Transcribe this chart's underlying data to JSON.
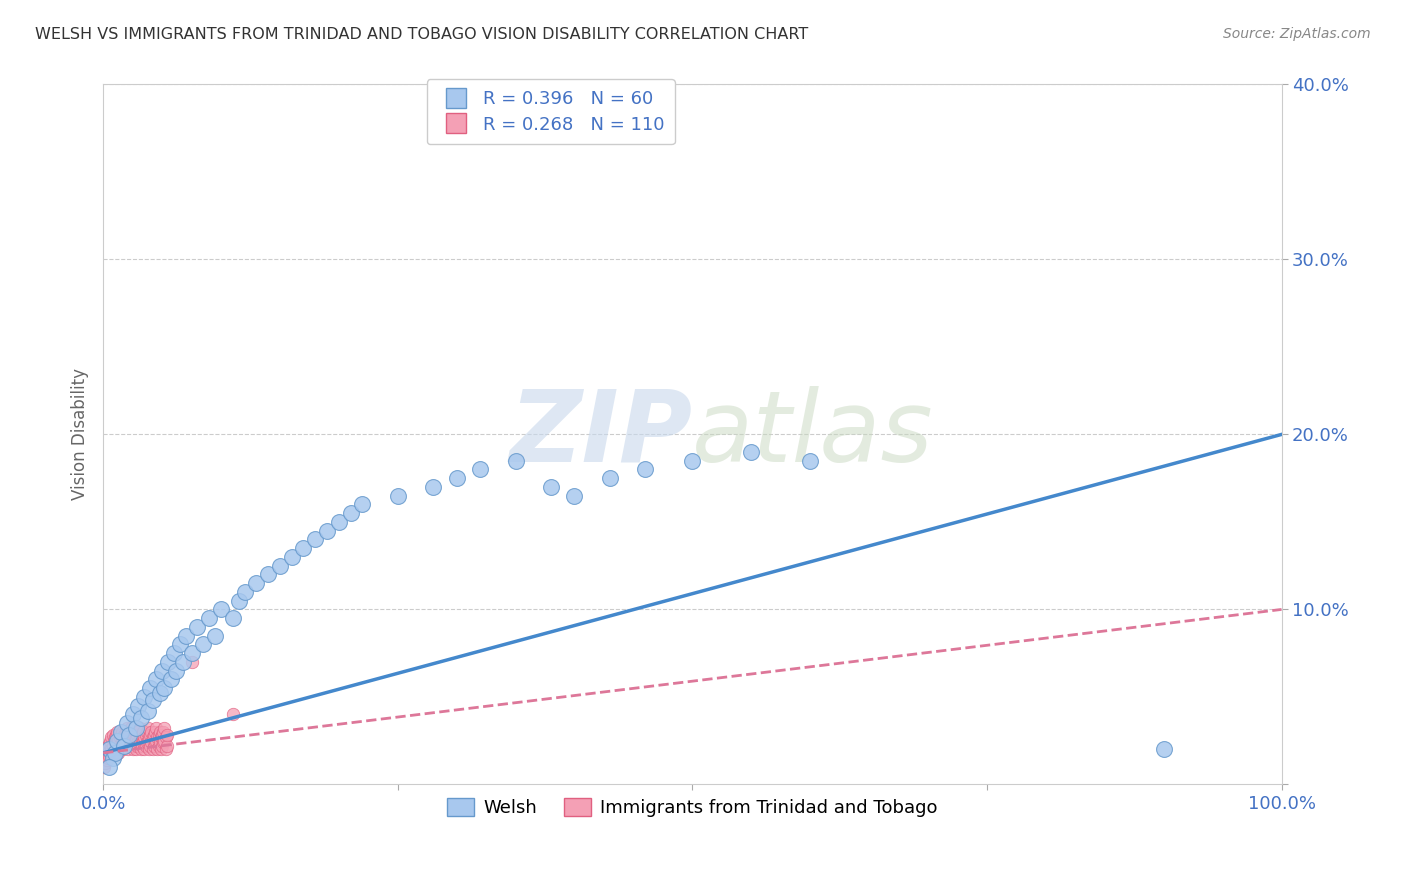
{
  "title": "WELSH VS IMMIGRANTS FROM TRINIDAD AND TOBAGO VISION DISABILITY CORRELATION CHART",
  "source": "Source: ZipAtlas.com",
  "ylabel": "Vision Disability",
  "xlim": [
    0.0,
    1.0
  ],
  "ylim": [
    0.0,
    0.4
  ],
  "welsh_R": 0.396,
  "welsh_N": 60,
  "tt_R": 0.268,
  "tt_N": 110,
  "welsh_color": "#A8C8EE",
  "tt_color": "#F4A0B5",
  "welsh_edge_color": "#6699CC",
  "tt_edge_color": "#E06080",
  "welsh_line_color": "#4488CC",
  "tt_line_color": "#DD7799",
  "background_color": "#ffffff",
  "grid_color": "#cccccc",
  "title_color": "#333333",
  "axis_label_color": "#4472C4",
  "legend_label_welsh": "Welsh",
  "legend_label_tt": "Immigrants from Trinidad and Tobago",
  "welsh_x": [
    0.005,
    0.008,
    0.01,
    0.012,
    0.015,
    0.018,
    0.02,
    0.022,
    0.025,
    0.028,
    0.03,
    0.032,
    0.035,
    0.038,
    0.04,
    0.042,
    0.045,
    0.048,
    0.05,
    0.052,
    0.055,
    0.058,
    0.06,
    0.062,
    0.065,
    0.068,
    0.07,
    0.075,
    0.08,
    0.085,
    0.09,
    0.095,
    0.1,
    0.11,
    0.115,
    0.12,
    0.13,
    0.14,
    0.15,
    0.16,
    0.17,
    0.18,
    0.19,
    0.2,
    0.21,
    0.22,
    0.25,
    0.28,
    0.3,
    0.32,
    0.35,
    0.38,
    0.4,
    0.43,
    0.46,
    0.5,
    0.55,
    0.6,
    0.9,
    0.005
  ],
  "welsh_y": [
    0.02,
    0.015,
    0.018,
    0.025,
    0.03,
    0.022,
    0.035,
    0.028,
    0.04,
    0.032,
    0.045,
    0.038,
    0.05,
    0.042,
    0.055,
    0.048,
    0.06,
    0.052,
    0.065,
    0.055,
    0.07,
    0.06,
    0.075,
    0.065,
    0.08,
    0.07,
    0.085,
    0.075,
    0.09,
    0.08,
    0.095,
    0.085,
    0.1,
    0.095,
    0.105,
    0.11,
    0.115,
    0.12,
    0.125,
    0.13,
    0.135,
    0.14,
    0.145,
    0.15,
    0.155,
    0.16,
    0.165,
    0.17,
    0.175,
    0.18,
    0.185,
    0.17,
    0.165,
    0.175,
    0.18,
    0.185,
    0.19,
    0.185,
    0.02,
    0.01
  ],
  "tt_x": [
    0.001,
    0.001,
    0.002,
    0.002,
    0.003,
    0.003,
    0.004,
    0.004,
    0.005,
    0.005,
    0.006,
    0.006,
    0.007,
    0.007,
    0.008,
    0.008,
    0.009,
    0.009,
    0.01,
    0.01,
    0.011,
    0.011,
    0.012,
    0.012,
    0.013,
    0.013,
    0.014,
    0.014,
    0.015,
    0.015,
    0.016,
    0.016,
    0.017,
    0.017,
    0.018,
    0.018,
    0.019,
    0.019,
    0.02,
    0.02,
    0.021,
    0.021,
    0.022,
    0.022,
    0.023,
    0.023,
    0.024,
    0.024,
    0.025,
    0.025,
    0.026,
    0.026,
    0.027,
    0.027,
    0.028,
    0.028,
    0.029,
    0.029,
    0.03,
    0.03,
    0.031,
    0.031,
    0.032,
    0.032,
    0.033,
    0.033,
    0.034,
    0.034,
    0.035,
    0.035,
    0.036,
    0.036,
    0.037,
    0.037,
    0.038,
    0.038,
    0.039,
    0.039,
    0.04,
    0.04,
    0.041,
    0.041,
    0.042,
    0.042,
    0.043,
    0.043,
    0.044,
    0.044,
    0.045,
    0.045,
    0.046,
    0.046,
    0.047,
    0.047,
    0.048,
    0.048,
    0.049,
    0.049,
    0.05,
    0.05,
    0.051,
    0.051,
    0.052,
    0.052,
    0.053,
    0.053,
    0.054,
    0.054,
    0.075,
    0.11
  ],
  "tt_y": [
    0.01,
    0.015,
    0.012,
    0.018,
    0.014,
    0.02,
    0.015,
    0.022,
    0.016,
    0.023,
    0.018,
    0.025,
    0.02,
    0.027,
    0.022,
    0.028,
    0.018,
    0.025,
    0.02,
    0.027,
    0.022,
    0.028,
    0.024,
    0.03,
    0.018,
    0.025,
    0.02,
    0.027,
    0.022,
    0.028,
    0.024,
    0.03,
    0.02,
    0.027,
    0.022,
    0.028,
    0.024,
    0.03,
    0.025,
    0.032,
    0.02,
    0.027,
    0.022,
    0.028,
    0.024,
    0.03,
    0.025,
    0.032,
    0.02,
    0.027,
    0.022,
    0.028,
    0.024,
    0.03,
    0.02,
    0.027,
    0.022,
    0.028,
    0.024,
    0.03,
    0.025,
    0.032,
    0.02,
    0.027,
    0.022,
    0.028,
    0.024,
    0.03,
    0.02,
    0.027,
    0.022,
    0.028,
    0.024,
    0.03,
    0.025,
    0.032,
    0.02,
    0.027,
    0.022,
    0.028,
    0.024,
    0.03,
    0.02,
    0.027,
    0.022,
    0.028,
    0.024,
    0.03,
    0.025,
    0.032,
    0.02,
    0.027,
    0.022,
    0.028,
    0.024,
    0.03,
    0.02,
    0.027,
    0.022,
    0.028,
    0.024,
    0.03,
    0.025,
    0.032,
    0.02,
    0.027,
    0.022,
    0.028,
    0.07,
    0.04
  ],
  "welsh_trend_x": [
    0.0,
    1.0
  ],
  "welsh_trend_y": [
    0.018,
    0.2
  ],
  "tt_trend_x": [
    0.0,
    1.0
  ],
  "tt_trend_y": [
    0.018,
    0.1
  ]
}
